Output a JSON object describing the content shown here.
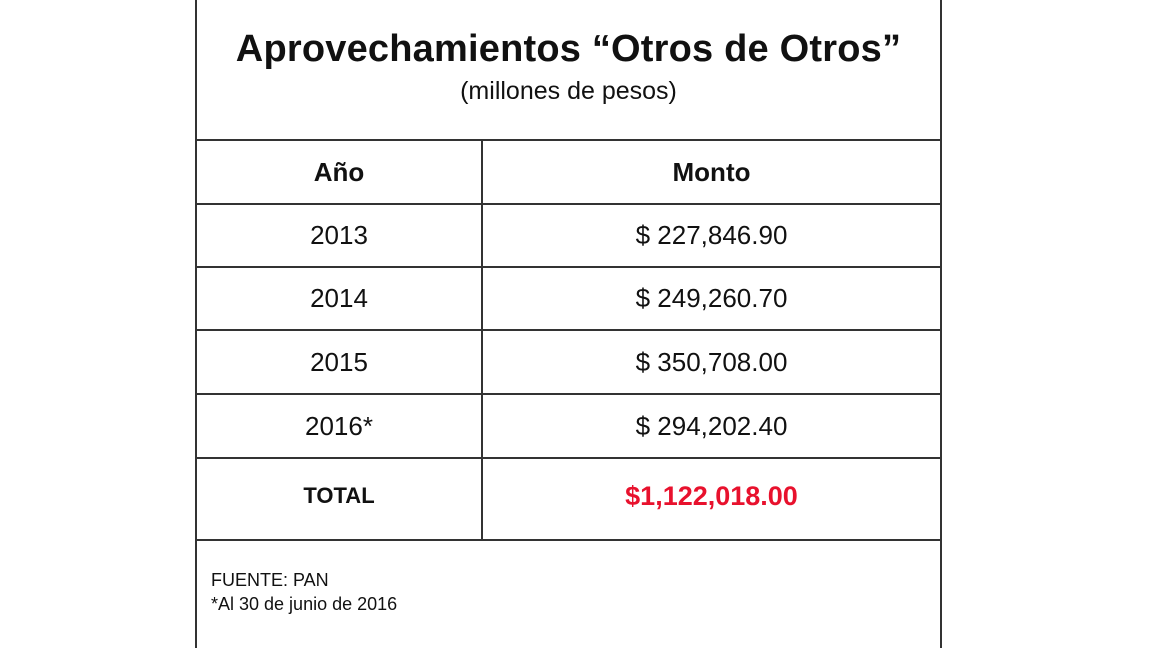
{
  "title": "Aprovechamientos “Otros de Otros”",
  "subtitle": "(millones de pesos)",
  "table": {
    "headers": [
      "Año",
      "Monto"
    ],
    "rows": [
      {
        "year": "2013",
        "amount": "$ 227,846.90"
      },
      {
        "year": "2014",
        "amount": "$ 249,260.70"
      },
      {
        "year": "2015",
        "amount": "$ 350,708.00"
      },
      {
        "year": "2016*",
        "amount": "$ 294,202.40"
      }
    ],
    "total": {
      "label": "TOTAL",
      "amount": "$1,122,018.00"
    }
  },
  "footer": {
    "source": "FUENTE: PAN",
    "note": "*Al 30 de junio de 2016"
  },
  "colors": {
    "total_amount": "#e8112d",
    "border": "#333333"
  }
}
